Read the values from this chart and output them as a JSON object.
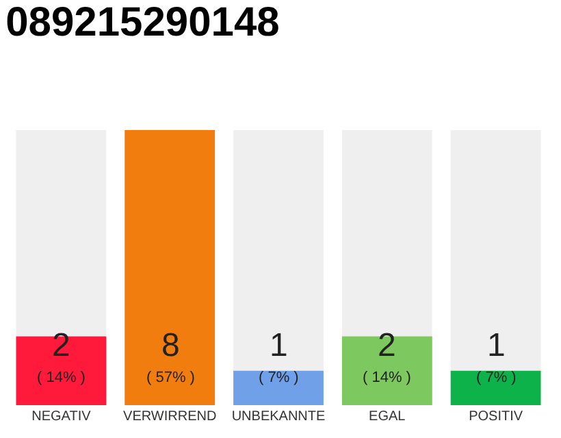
{
  "chart_data": {
    "type": "bar",
    "title": "089215290148",
    "categories": [
      "NEGATIV",
      "VERWIRREND",
      "UNBEKANNTE",
      "EGAL",
      "POSITIV"
    ],
    "values": [
      2,
      8,
      1,
      2,
      1
    ],
    "colors": [
      "#ff1a3c",
      "#f07d0e",
      "#6fa0e8",
      "#7ec860",
      "#0db34a"
    ],
    "value_labels": [
      "2\n( 14% )",
      "8\n( 57% )",
      "1\n( 7% )",
      "2\n( 14% )",
      "1\n( 7% )"
    ],
    "ylim": [
      0,
      8
    ],
    "tick_labels": "x",
    "grid": false,
    "legend": false
  }
}
